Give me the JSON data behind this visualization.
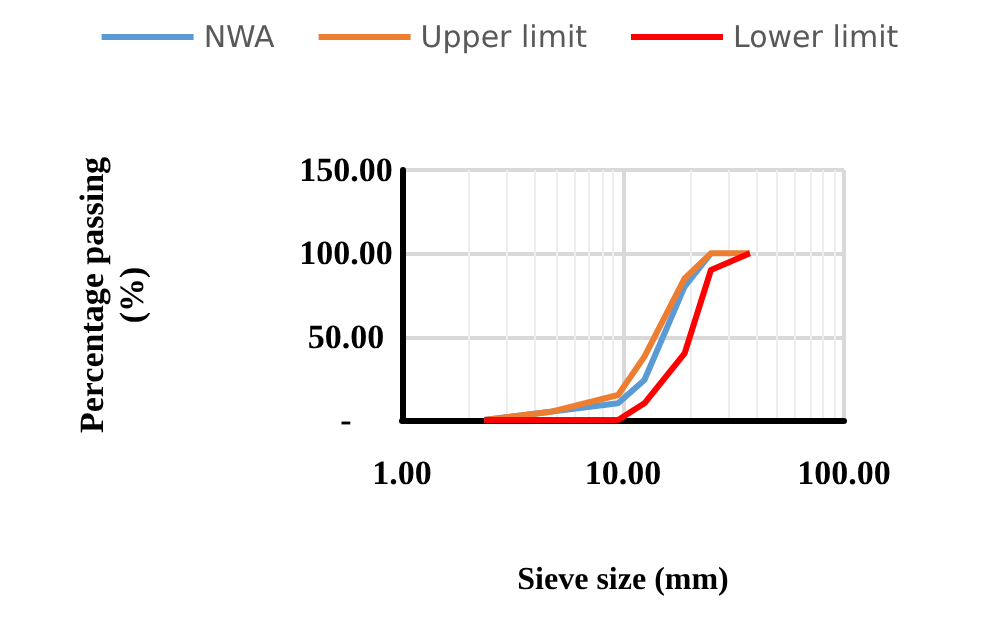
{
  "chart_data": {
    "type": "line",
    "xlabel": "Sieve size (mm)",
    "ylabel": "Percentage passing\n(%)",
    "log": "x",
    "grid": true,
    "legend": "top",
    "marker": "none",
    "line_style": "solid",
    "xlim": [
      1,
      100
    ],
    "xticks": [
      {
        "value": 1,
        "label": "1.00"
      },
      {
        "value": 10,
        "label": "10.00"
      },
      {
        "value": 100,
        "label": "100.00"
      }
    ],
    "ylim": [
      0,
      150
    ],
    "yticks": [
      {
        "value": 0,
        "label": "-"
      },
      {
        "value": 50,
        "label": "50.00"
      },
      {
        "value": 100,
        "label": "100.00"
      },
      {
        "value": 150,
        "label": "150.00"
      }
    ],
    "series": [
      {
        "name": "NWA",
        "color": "#5b9bd5",
        "x": [
          2.36,
          9.5,
          12.5,
          19,
          25
        ],
        "values": [
          0,
          10,
          24,
          80,
          100
        ]
      },
      {
        "name": "Upper limit",
        "color": "#ed7d31",
        "x": [
          2.36,
          4.75,
          9.5,
          12.5,
          19,
          25,
          37.5
        ],
        "values": [
          0,
          5,
          15,
          38,
          85,
          100,
          100
        ]
      },
      {
        "name": "Lower limit",
        "color": "#ff0000",
        "x": [
          2.36,
          9.5,
          12.5,
          19,
          25,
          37.5
        ],
        "values": [
          0,
          0,
          10,
          40,
          90,
          100
        ]
      }
    ]
  }
}
